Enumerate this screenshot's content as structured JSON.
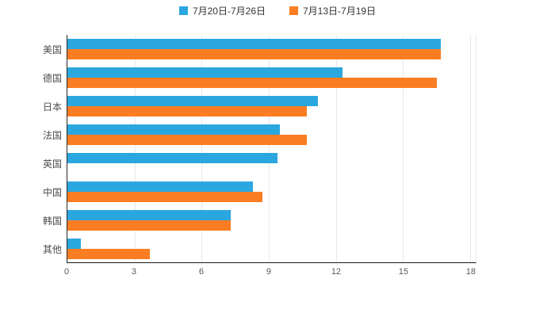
{
  "chart_data": {
    "type": "bar",
    "orientation": "horizontal",
    "title": "",
    "categories": [
      "美国",
      "德国",
      "日本",
      "法国",
      "英国",
      "中国",
      "韩国",
      "其他"
    ],
    "series": [
      {
        "name": "7月20日-7月26日",
        "color": "#2BA7DF",
        "values": [
          16.7,
          12.3,
          11.2,
          9.5,
          9.4,
          8.3,
          7.3,
          0.6
        ]
      },
      {
        "name": "7月13日-7月19日",
        "color": "#FB7D23",
        "values": [
          16.7,
          16.5,
          10.7,
          10.7,
          0,
          8.7,
          7.3,
          3.7
        ]
      }
    ],
    "xlim": [
      0,
      18.25
    ],
    "x_ticks": [
      0,
      3,
      6,
      9,
      12,
      15,
      18
    ],
    "grid": true,
    "legend_position": "top",
    "colors": {
      "background": "#ffffff",
      "gridline": "#e8e8e8",
      "axis": "#262626",
      "label": "#4d4d4d"
    }
  }
}
